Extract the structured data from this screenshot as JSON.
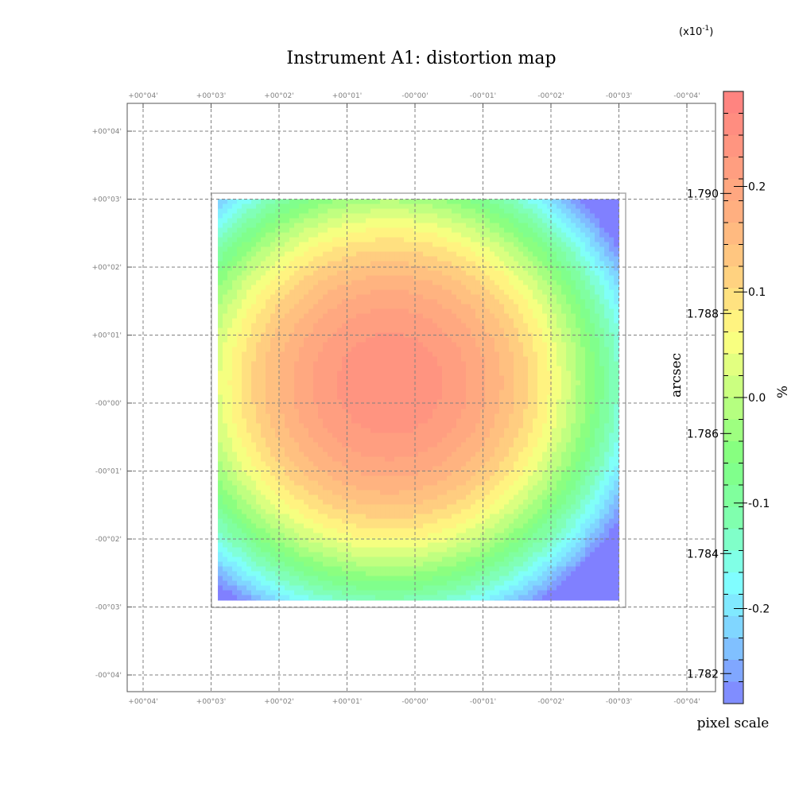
{
  "chart_data": {
    "type": "heatmap",
    "title": "Instrument A1: distortion map",
    "x_ticks": [
      "+00°04'",
      "+00°03'",
      "+00°02'",
      "+00°01'",
      "-00°00'",
      "-00°01'",
      "-00°02'",
      "-00°03'",
      "-00°04'"
    ],
    "y_ticks": [
      "+00°04'",
      "+00°03'",
      "+00°02'",
      "+00°01'",
      "-00°00'",
      "-00°01'",
      "-00°02'",
      "-00°03'",
      "-00°04'"
    ],
    "center": {
      "ra_arcmin": 0.37,
      "dec_arcmin": 0.28
    },
    "map_extent_arcmin": {
      "ra": [
        2.9,
        -3.0
      ],
      "dec": [
        3.0,
        -2.9
      ]
    },
    "colorbar_percent": {
      "label": "%",
      "ticks": [
        "0.2",
        "0.1",
        "0.0",
        "-0.1",
        "-0.2"
      ],
      "tick_values": [
        0.2,
        0.1,
        0.0,
        -0.1,
        -0.2
      ],
      "range": [
        -0.29,
        0.29
      ],
      "multiplier_base": "(x10",
      "multiplier_exp": "-1",
      "multiplier_close": ")"
    },
    "colorbar_pixel_scale": {
      "label": "arcsec",
      "title": "pixel scale",
      "ticks": [
        "1.790",
        "1.788",
        "1.786",
        "1.784",
        "1.782"
      ],
      "tick_values": [
        1.79,
        1.788,
        1.786,
        1.784,
        1.782
      ],
      "range": [
        1.7815,
        1.7917
      ]
    },
    "colormap": [
      "#8080ff",
      "#80c8ff",
      "#80ffff",
      "#80ffb0",
      "#80ff80",
      "#c0ff80",
      "#ffff80",
      "#ffd080",
      "#ffb080",
      "#ff9880",
      "#ff8080"
    ],
    "levels": 24,
    "grid": true
  }
}
